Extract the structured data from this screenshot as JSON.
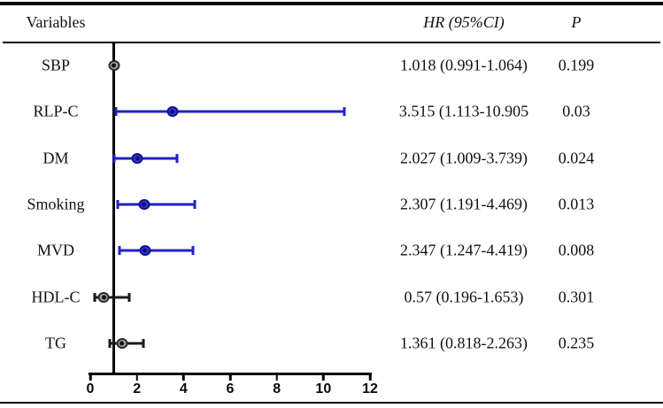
{
  "header": {
    "variables_label": "Variables",
    "hr_label": "HR (95%CI)",
    "p_label": "P"
  },
  "chart_data": {
    "type": "forest",
    "title": "",
    "xlabel": "",
    "ylabel": "",
    "grid": false,
    "legend": "none",
    "axis": {
      "min": 0,
      "max": 12,
      "ticks": [
        0,
        2,
        4,
        6,
        8,
        10,
        12
      ],
      "reference_line": 1
    },
    "columns": [
      "Variables",
      "HR (95%CI)",
      "P"
    ],
    "rows": [
      {
        "variable": "SBP",
        "hr": 1.018,
        "ci_low": 0.991,
        "ci_high": 1.064,
        "p": 0.199,
        "hr_text": "1.018 (0.991-1.064)",
        "p_text": "0.199",
        "color": "gray"
      },
      {
        "variable": "RLP-C",
        "hr": 3.515,
        "ci_low": 1.113,
        "ci_high": 10.905,
        "p": 0.03,
        "hr_text": "3.515 (1.113-10.905",
        "p_text": "0.03",
        "color": "blue"
      },
      {
        "variable": "DM",
        "hr": 2.027,
        "ci_low": 1.009,
        "ci_high": 3.739,
        "p": 0.024,
        "hr_text": "2.027 (1.009-3.739)",
        "p_text": "0.024",
        "color": "blue"
      },
      {
        "variable": "Smoking",
        "hr": 2.307,
        "ci_low": 1.191,
        "ci_high": 4.469,
        "p": 0.013,
        "hr_text": "2.307 (1.191-4.469)",
        "p_text": "0.013",
        "color": "blue"
      },
      {
        "variable": "MVD",
        "hr": 2.347,
        "ci_low": 1.247,
        "ci_high": 4.419,
        "p": 0.008,
        "hr_text": "2.347 (1.247-4.419)",
        "p_text": "0.008",
        "color": "blue"
      },
      {
        "variable": "HDL-C",
        "hr": 0.57,
        "ci_low": 0.196,
        "ci_high": 1.653,
        "p": 0.301,
        "hr_text": "0.57 (0.196-1.653)",
        "p_text": "0.301",
        "color": "gray"
      },
      {
        "variable": "TG",
        "hr": 1.361,
        "ci_low": 0.818,
        "ci_high": 2.263,
        "p": 0.235,
        "hr_text": "1.361 (0.818-2.263)",
        "p_text": "0.235",
        "color": "gray"
      }
    ],
    "colors": {
      "blue_line": "#2121c4",
      "blue_marker_fill": "#3434d2",
      "blue_marker_border": "#10108e",
      "blue_marker_dot": "#0d0d7a",
      "gray_line": "#1a1a1a",
      "gray_marker_fill": "#a0a0a0",
      "gray_marker_border": "#2b2b2b",
      "gray_marker_dot": "#111111",
      "axis_color": "#000000"
    }
  }
}
